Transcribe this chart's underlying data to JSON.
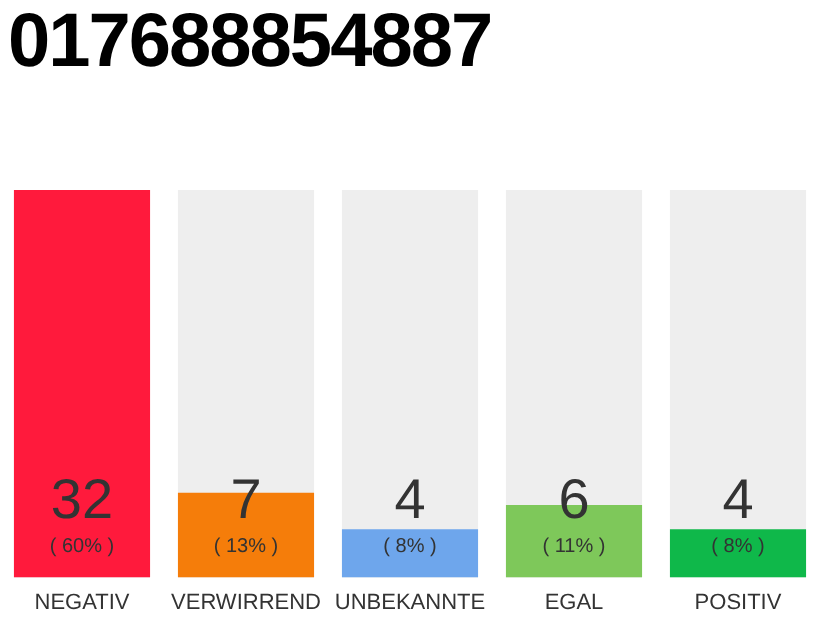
{
  "chart_data": {
    "type": "bar",
    "title": "017688854887",
    "categories": [
      "NEGATIV",
      "VERWIRREND",
      "UNBEKANNTE",
      "EGAL",
      "POSITIV"
    ],
    "values": [
      32,
      7,
      4,
      6,
      4
    ],
    "colors": [
      "#ff1a3c",
      "#f57d0a",
      "#6ea6ec",
      "#7ec85a",
      "#0fb84a"
    ],
    "value_labels": [
      "32\n( 60% )",
      "7\n( 13% )",
      "4\n( 8% )",
      "6\n( 11% )",
      "4\n( 8% )"
    ],
    "tick_labels": "x",
    "grid": false,
    "legend": false
  }
}
